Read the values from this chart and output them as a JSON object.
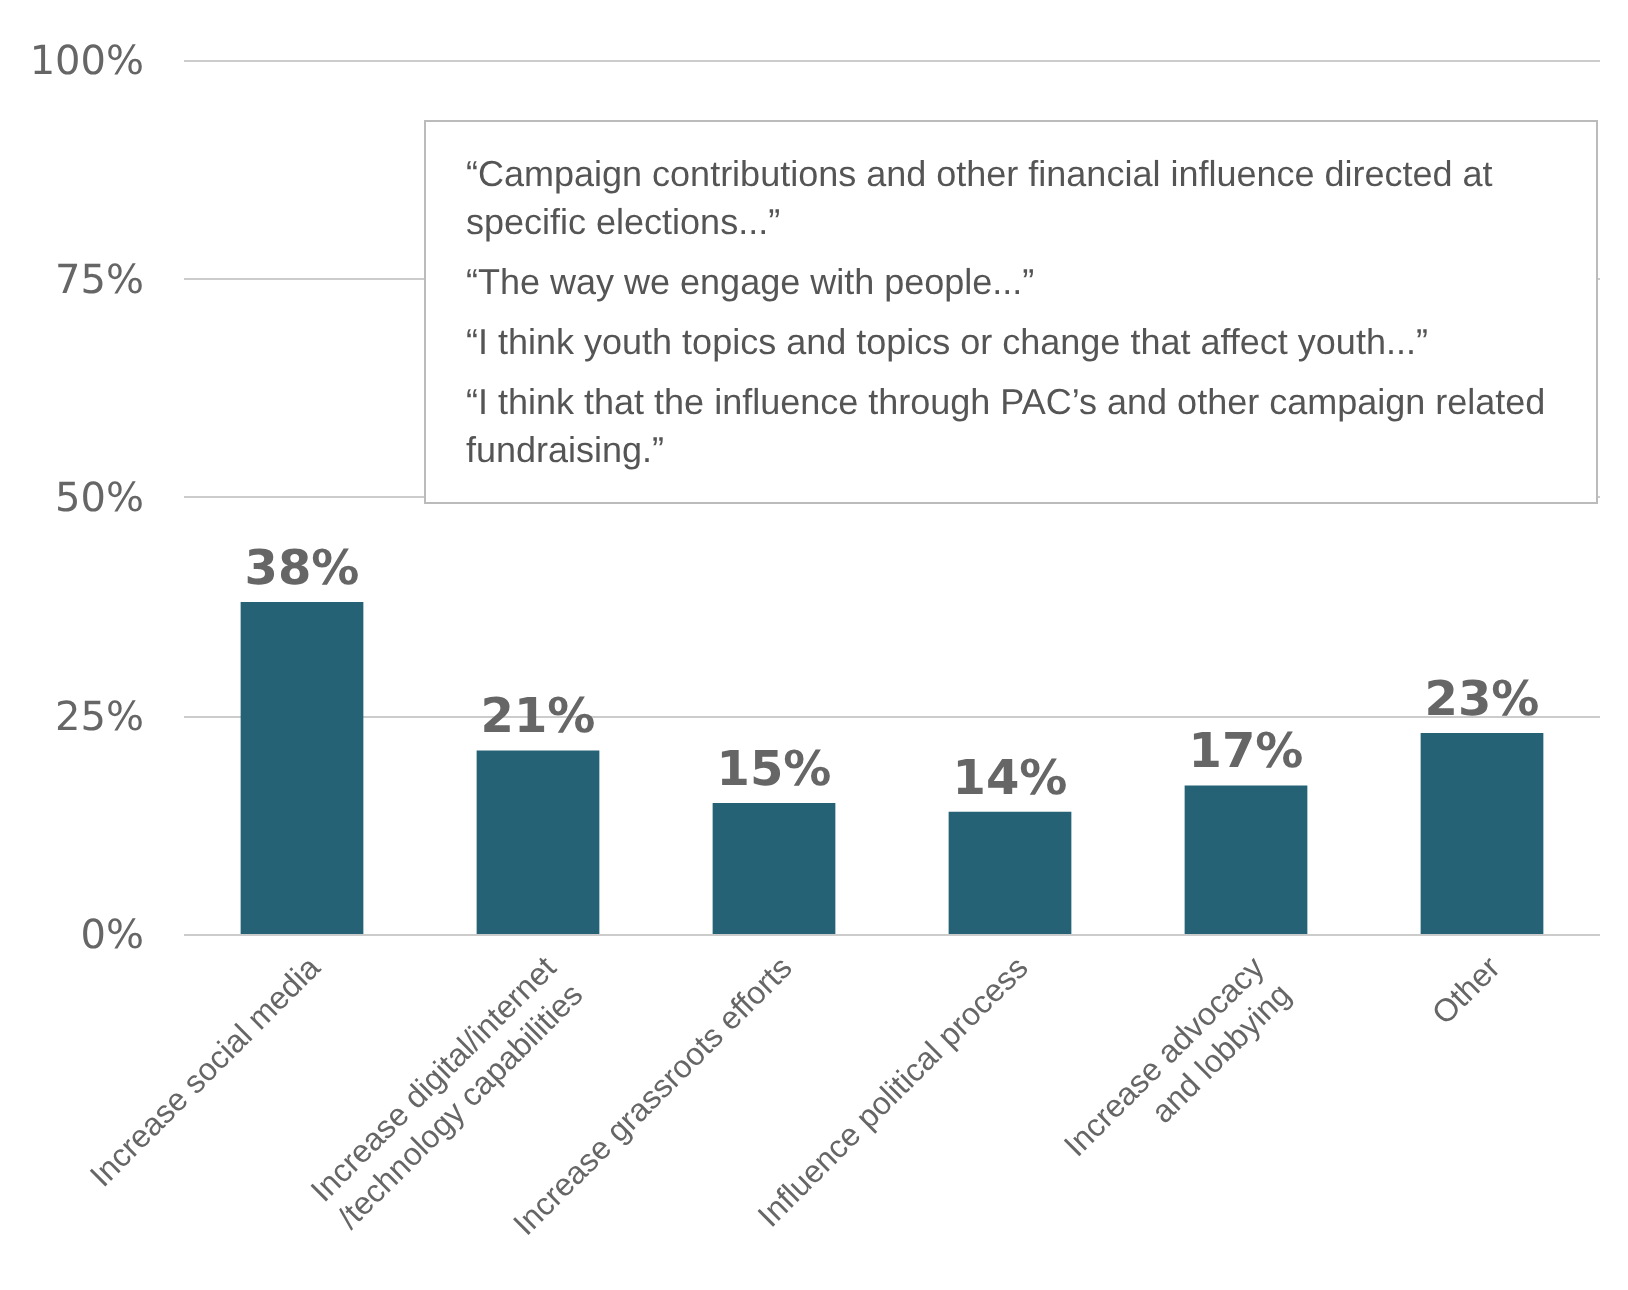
{
  "chart_data": {
    "type": "bar",
    "categories": [
      "Increase social media",
      "Increase digital/internet\n/technology capabilities",
      "Increase grassroots efforts",
      "Influence political process",
      "Increase advocacy\nand lobbying",
      "Other"
    ],
    "values": [
      38,
      21,
      15,
      14,
      17,
      23
    ],
    "color": "#266275",
    "ylim": [
      0,
      100
    ],
    "yticks": [
      {
        "value": 0,
        "label": "0%"
      },
      {
        "value": 25,
        "label": "25%"
      },
      {
        "value": 50,
        "label": "50%"
      },
      {
        "value": 75,
        "label": "75%"
      },
      {
        "value": 100,
        "label": "100%"
      }
    ],
    "grid": "y",
    "value_labels": [
      "38%",
      "21%",
      "15%",
      "14%",
      "17%",
      "23%"
    ],
    "annotations": [
      "“Campaign contributions and other financial influence directed at specific elections...”",
      "“The way we engage with people...”",
      "“I think youth topics and topics or change that affect youth...”",
      "“I think that the influence through PAC’s and other campaign related fundraising.”"
    ]
  }
}
